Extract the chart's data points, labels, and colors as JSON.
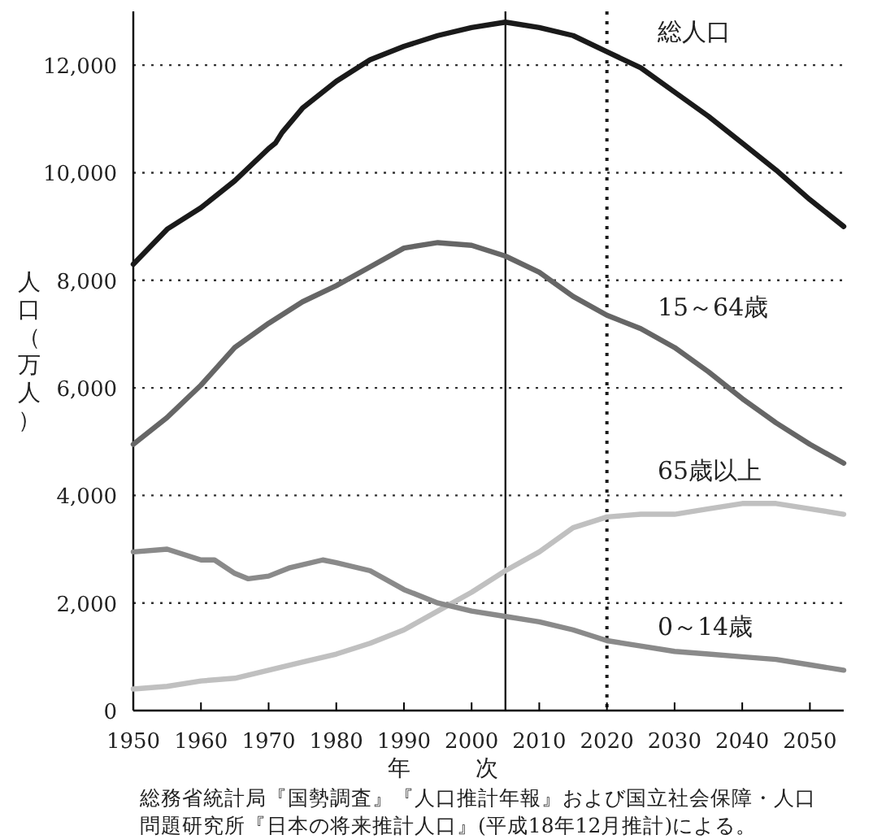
{
  "chart_data": {
    "type": "line",
    "xlabel": "年次",
    "ylabel": "人口（万人）",
    "xlim": [
      1950,
      2055
    ],
    "ylim": [
      0,
      13000
    ],
    "xticks": [
      1950,
      1960,
      1970,
      1980,
      1990,
      2000,
      2010,
      2020,
      2030,
      2040,
      2050
    ],
    "yticks": [
      0,
      {
        "value": 2000,
        "label": "2,000"
      },
      {
        "value": 4000,
        "label": "4,000"
      },
      {
        "value": 6000,
        "label": "6,000"
      },
      {
        "value": 8000,
        "label": "8,000"
      },
      {
        "value": 10000,
        "label": "10,000"
      },
      {
        "value": 12000,
        "label": "12,000"
      }
    ],
    "grid": "y",
    "legend": false,
    "marker": "none",
    "line_style": "solid",
    "series": [
      {
        "name": "総人口",
        "color": "#1a1a1a",
        "x": [
          1950,
          1955,
          1960,
          1965,
          1970,
          1971,
          1972,
          1975,
          1980,
          1985,
          1990,
          1995,
          2000,
          2005,
          2010,
          2015,
          2020,
          2025,
          2030,
          2035,
          2040,
          2045,
          2050,
          2055
        ],
        "values": [
          8300,
          8950,
          9350,
          9850,
          10450,
          10550,
          10750,
          11200,
          11700,
          12100,
          12350,
          12550,
          12700,
          12800,
          12700,
          12550,
          12250,
          11950,
          11500,
          11050,
          10550,
          10050,
          9500,
          9000
        ]
      },
      {
        "name": "15～64歳",
        "color": "#666666",
        "x": [
          1950,
          1955,
          1960,
          1965,
          1970,
          1975,
          1980,
          1985,
          1990,
          1995,
          2000,
          2005,
          2010,
          2015,
          2020,
          2025,
          2030,
          2035,
          2040,
          2045,
          2050,
          2055
        ],
        "values": [
          4950,
          5450,
          6050,
          6750,
          7200,
          7600,
          7900,
          8250,
          8600,
          8700,
          8650,
          8450,
          8150,
          7700,
          7350,
          7100,
          6750,
          6300,
          5800,
          5350,
          4950,
          4600
        ]
      },
      {
        "name": "65歳以上",
        "color": "#c0c0c0",
        "x": [
          1950,
          1955,
          1960,
          1965,
          1970,
          1975,
          1980,
          1985,
          1990,
          1995,
          2000,
          2005,
          2010,
          2015,
          2020,
          2025,
          2030,
          2035,
          2040,
          2045,
          2050,
          2055
        ],
        "values": [
          400,
          450,
          550,
          600,
          750,
          900,
          1050,
          1250,
          1500,
          1850,
          2200,
          2600,
          2950,
          3400,
          3600,
          3650,
          3650,
          3750,
          3850,
          3850,
          3750,
          3650
        ]
      },
      {
        "name": "0～14歳",
        "color": "#8a8a8a",
        "x": [
          1950,
          1955,
          1960,
          1962,
          1965,
          1967,
          1970,
          1973,
          1978,
          1980,
          1985,
          1990,
          1995,
          2000,
          2005,
          2010,
          2015,
          2020,
          2025,
          2030,
          2035,
          2040,
          2045,
          2050,
          2055
        ],
        "values": [
          2950,
          3000,
          2800,
          2800,
          2550,
          2450,
          2500,
          2650,
          2800,
          2750,
          2600,
          2250,
          2000,
          1850,
          1750,
          1650,
          1500,
          1300,
          1200,
          1100,
          1050,
          1000,
          950,
          850,
          750
        ]
      }
    ],
    "ref_lines": [
      {
        "axis": "x",
        "value": 2005,
        "color": "#1a1a1a",
        "line_style": "solid"
      },
      {
        "axis": "x",
        "value": 2020,
        "color": "#1a1a1a",
        "line_style": "dotted"
      }
    ],
    "annotations": [
      "総務省統計局『国勢調査』『人口推計年報』および国立社会保障・人口",
      "問題研究所『日本の将来推計人口』(平成18年12月推計)による。"
    ]
  }
}
